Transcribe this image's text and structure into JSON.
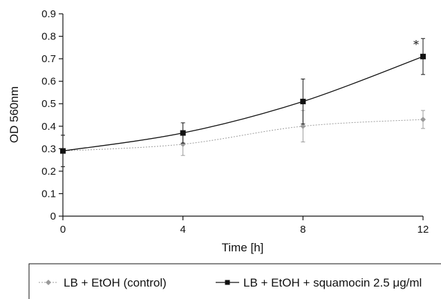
{
  "chart_data": {
    "type": "line",
    "xlabel": "Time [h]",
    "ylabel": "OD 560nm",
    "x": [
      0,
      4,
      8,
      12
    ],
    "xlim": [
      0,
      12
    ],
    "ylim": [
      0,
      0.9
    ],
    "xticks": [
      "0",
      "4",
      "8",
      "12"
    ],
    "yticks": [
      "0",
      "0.1",
      "0.2",
      "0.3",
      "0.4",
      "0.5",
      "0.6",
      "0.7",
      "0.8",
      "0.9"
    ],
    "grid": false,
    "legend_position": "bottom",
    "series": [
      {
        "name": "LB + EtOH (control)",
        "values": [
          0.29,
          0.32,
          0.4,
          0.43
        ],
        "error": [
          0.07,
          0.05,
          0.07,
          0.04
        ],
        "color": "#9a9a9a",
        "marker": "diamond",
        "line_style": "dotted"
      },
      {
        "name": "LB + EtOH + squamocin 2.5 μg/ml",
        "values": [
          0.29,
          0.37,
          0.51,
          0.71
        ],
        "error": [
          0.07,
          0.045,
          0.1,
          0.08
        ],
        "color": "#111111",
        "marker": "square",
        "line_style": "solid"
      }
    ],
    "annotations": [
      {
        "text": "*",
        "x": 12,
        "series": 1
      }
    ]
  }
}
